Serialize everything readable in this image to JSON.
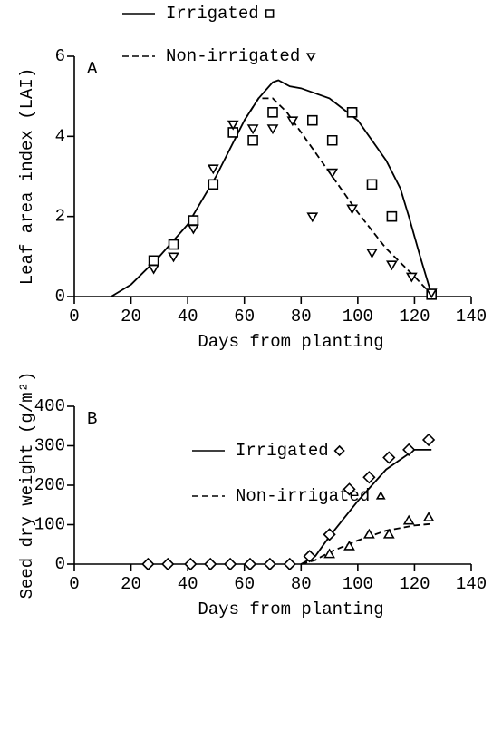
{
  "chart_data": [
    {
      "type": "scatter",
      "panel_label": "A",
      "xlabel": "Days from planting",
      "ylabel": "Leaf area index (LAI)",
      "xlim": [
        0,
        140
      ],
      "xticks": [
        0,
        20,
        40,
        60,
        80,
        100,
        120,
        140
      ],
      "ylim": [
        0,
        6
      ],
      "yticks": [
        0,
        2,
        4,
        6
      ],
      "legend": "top",
      "series": [
        {
          "name": "Irrigated",
          "color": "#000000",
          "marker": "square",
          "linestyle": "solid",
          "x": [
            28,
            35,
            42,
            49,
            56,
            63,
            70,
            84,
            91,
            98,
            105,
            112,
            126
          ],
          "values": [
            0.9,
            1.3,
            1.9,
            2.8,
            4.1,
            3.9,
            4.6,
            4.4,
            3.9,
            4.6,
            2.8,
            2.0,
            0.05
          ],
          "fit_x": [
            13,
            20,
            30,
            40,
            50,
            60,
            65,
            70,
            72,
            76,
            80,
            90,
            100,
            110,
            115,
            118,
            122,
            126
          ],
          "fit_values": [
            0,
            0.3,
            1.0,
            1.8,
            3.0,
            4.4,
            4.95,
            5.35,
            5.4,
            5.25,
            5.2,
            4.95,
            4.4,
            3.4,
            2.7,
            2.0,
            1.0,
            0.05
          ]
        },
        {
          "name": "Non-irrigated",
          "color": "#000000",
          "marker": "triangle-down",
          "linestyle": "dashed",
          "x": [
            28,
            35,
            42,
            49,
            56,
            63,
            70,
            77,
            84,
            91,
            98,
            105,
            112,
            119,
            126
          ],
          "values": [
            0.7,
            1.0,
            1.7,
            3.2,
            4.3,
            4.2,
            4.2,
            4.4,
            2.0,
            3.1,
            2.2,
            1.1,
            0.8,
            0.5,
            0.1
          ],
          "fit_x": [
            60,
            65,
            70,
            75,
            80,
            90,
            100,
            110,
            120,
            126
          ],
          "fit_values": [
            4.4,
            4.95,
            4.95,
            4.6,
            4.1,
            3.1,
            2.1,
            1.2,
            0.5,
            0.05
          ]
        }
      ]
    },
    {
      "type": "scatter",
      "panel_label": "B",
      "xlabel": "Days from planting",
      "ylabel": "Seed dry weight (g/m²)",
      "xlim": [
        0,
        140
      ],
      "xticks": [
        0,
        20,
        40,
        60,
        80,
        100,
        120,
        140
      ],
      "ylim": [
        0,
        400
      ],
      "yticks": [
        0,
        100,
        200,
        300,
        400
      ],
      "legend": "upper center",
      "series": [
        {
          "name": "Irrigated",
          "color": "#000000",
          "marker": "diamond",
          "linestyle": "solid",
          "x": [
            26,
            33,
            41,
            48,
            55,
            62,
            69,
            76,
            83,
            90,
            97,
            104,
            111,
            118,
            125
          ],
          "values": [
            0,
            0,
            0,
            0,
            0,
            0,
            0,
            0,
            20,
            75,
            190,
            220,
            270,
            290,
            315
          ],
          "fit_x": [
            80,
            85,
            90,
            100,
            110,
            120,
            126
          ],
          "fit_values": [
            0,
            20,
            70,
            160,
            240,
            290,
            290
          ]
        },
        {
          "name": "Non-irrigated",
          "color": "#000000",
          "marker": "triangle-up",
          "linestyle": "dashed",
          "x": [
            90,
            97,
            104,
            111,
            118,
            125
          ],
          "values": [
            25,
            45,
            75,
            75,
            110,
            118
          ],
          "fit_x": [
            80,
            85,
            90,
            100,
            110,
            120,
            126
          ],
          "fit_values": [
            0,
            10,
            30,
            60,
            85,
            98,
            102
          ]
        }
      ]
    }
  ]
}
